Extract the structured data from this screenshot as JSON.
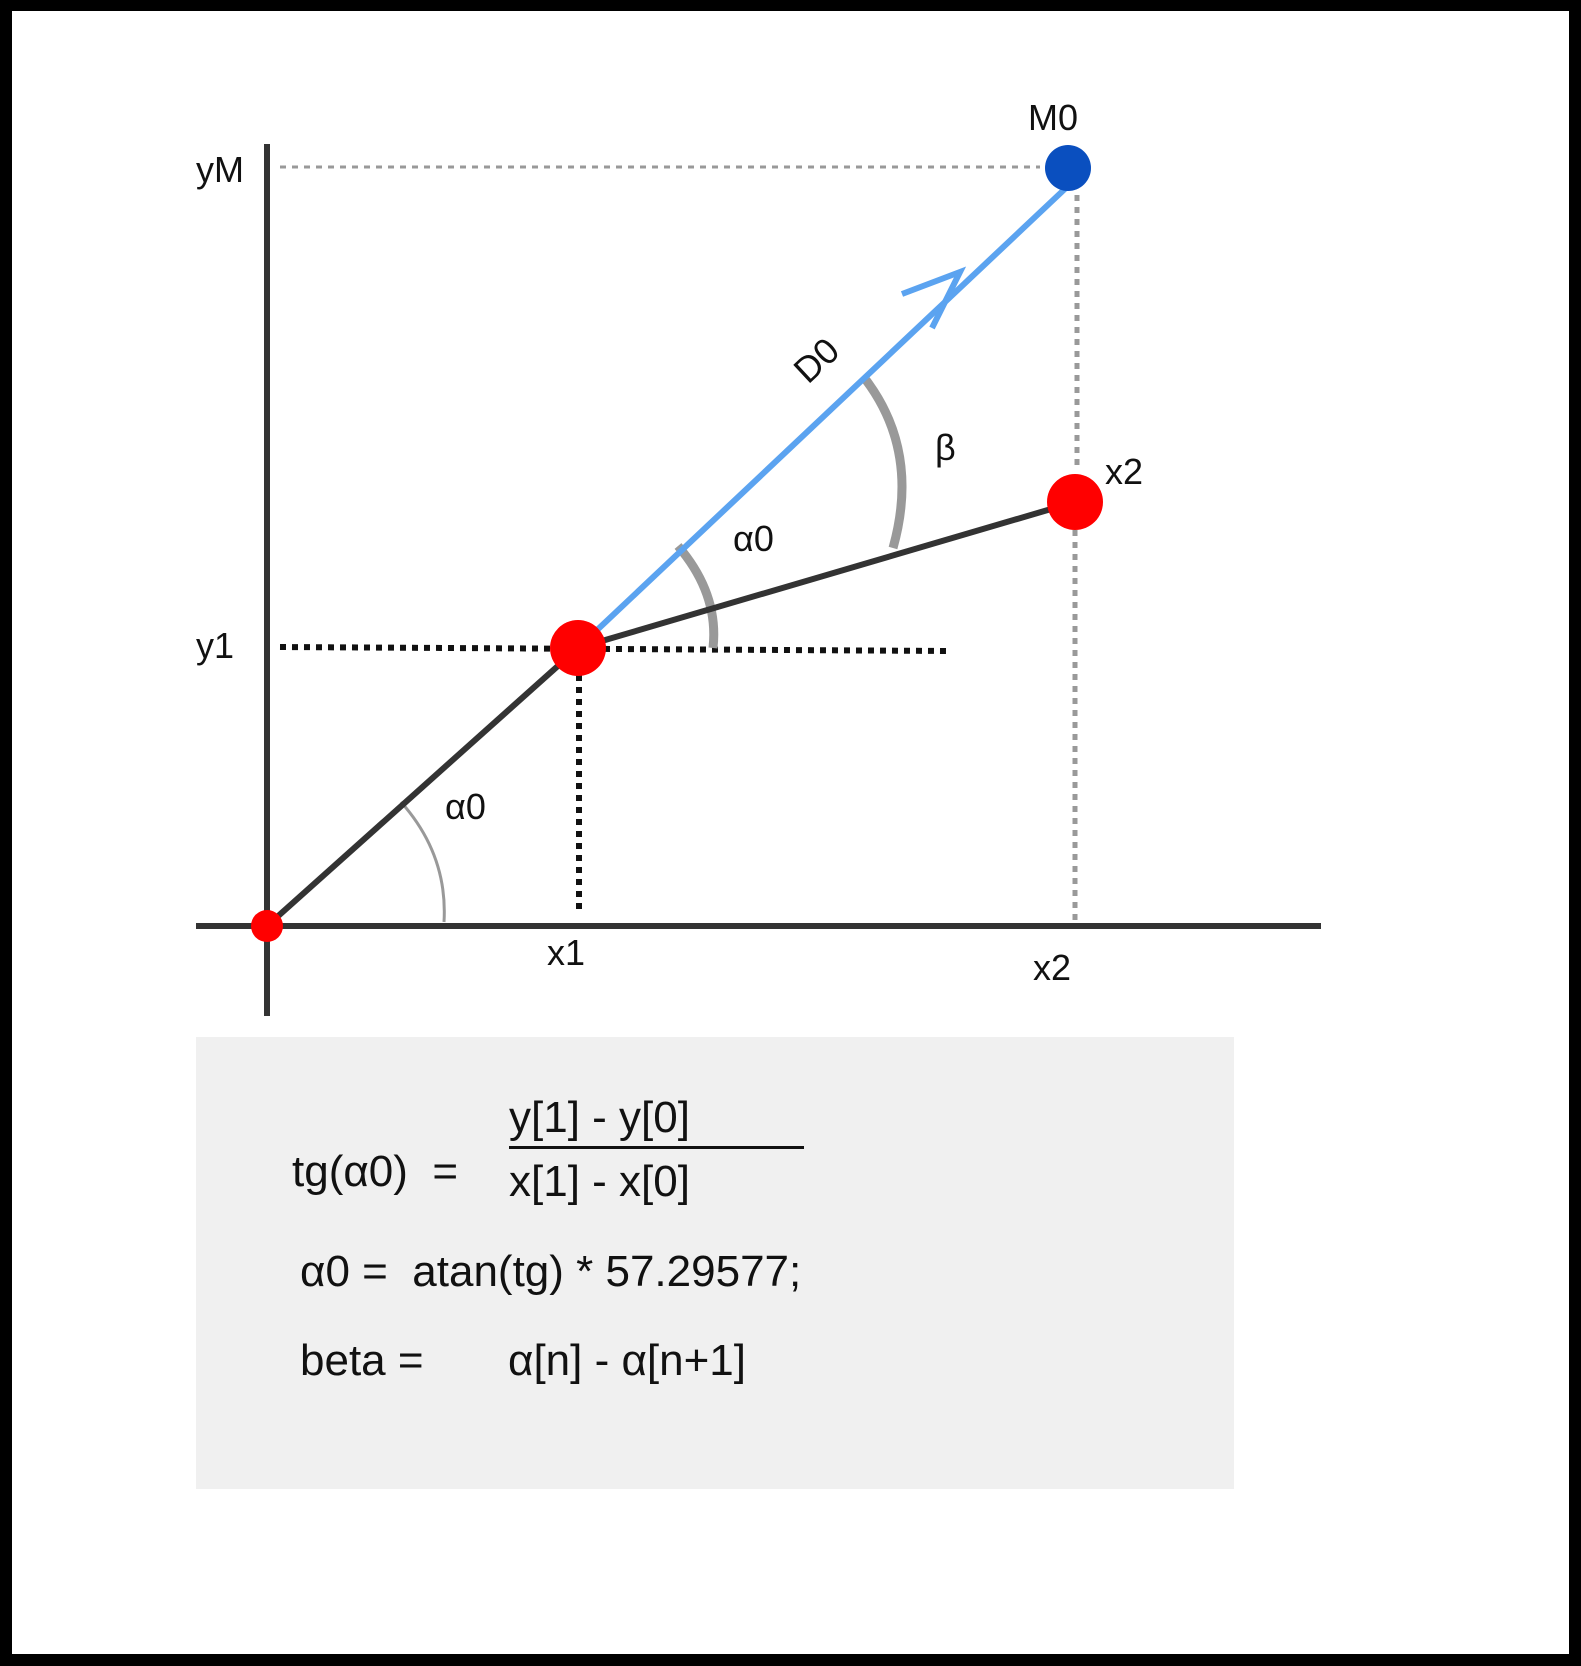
{
  "labels": {
    "y_axis_top": "yM",
    "y_axis_mid": "y1",
    "x_axis_mid": "x1",
    "x_axis_right": "x2",
    "point_m0": "M0",
    "point_x2": "x2",
    "vector_d0": "D0",
    "angle_beta": "β",
    "angle_alpha_upper": "α0",
    "angle_alpha_lower": "α0"
  },
  "formulas": {
    "tg_lhs": "tg(α0)  =",
    "tg_numerator": "y[1] - y[0]",
    "tg_denominator": "x[1] - x[0]",
    "alpha_line": "α0 =  atan(tg) * 57.29577;",
    "beta_lhs": "beta =",
    "beta_rhs": "α[n] - α[n+1]"
  },
  "colors": {
    "axis": "#333333",
    "vector": "#5ba3f0",
    "point_red": "#ff0000",
    "point_blue": "#0a4fbf",
    "guide_dark": "#111111",
    "guide_gray": "#999999",
    "arc_gray": "#999999",
    "formula_bg": "#f0f0f0"
  }
}
